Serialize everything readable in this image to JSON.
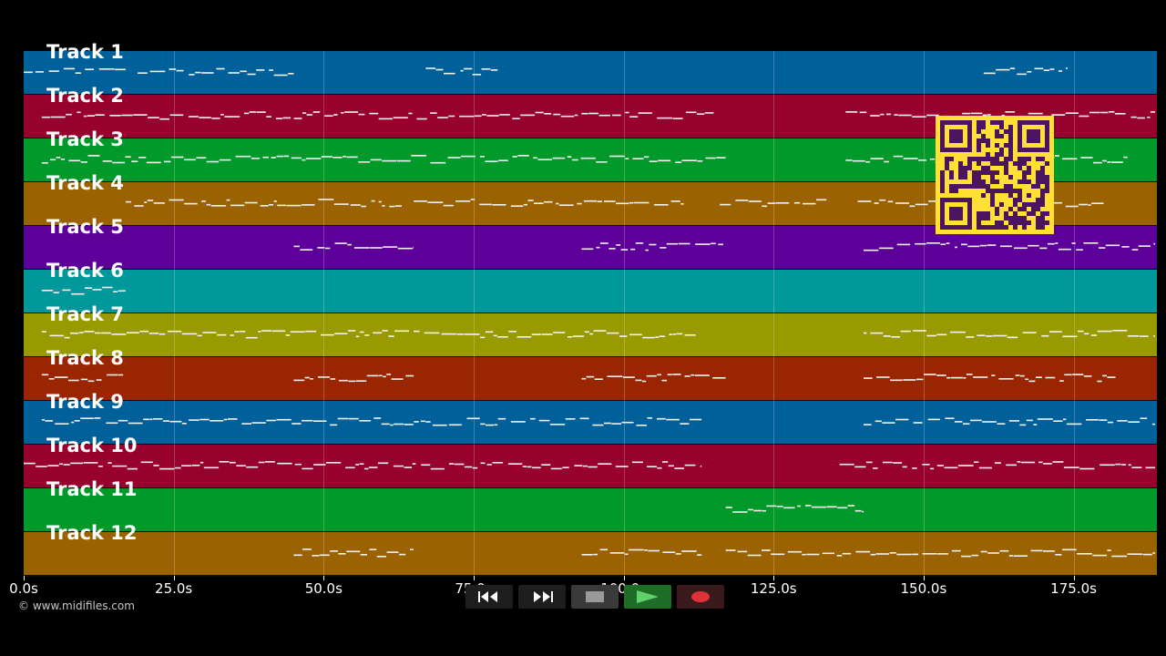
{
  "tracks": [
    {
      "label": "Track 1",
      "color": "#00609a"
    },
    {
      "label": "Track 2",
      "color": "#98002e"
    },
    {
      "label": "Track 3",
      "color": "#00992a"
    },
    {
      "label": "Track 4",
      "color": "#9a6200"
    },
    {
      "label": "Track 5",
      "color": "#5c0099"
    },
    {
      "label": "Track 6",
      "color": "#00989a"
    },
    {
      "label": "Track 7",
      "color": "#999900"
    },
    {
      "label": "Track 8",
      "color": "#992600"
    },
    {
      "label": "Track 9",
      "color": "#00609a"
    },
    {
      "label": "Track 10",
      "color": "#98002e"
    },
    {
      "label": "Track 11",
      "color": "#00992a"
    },
    {
      "label": "Track 12",
      "color": "#9a6200"
    }
  ],
  "time_axis": {
    "ticks": [
      "0.0s",
      "25.0s",
      "50.0s",
      "75.0s",
      "100.0s",
      "125.0s",
      "150.0s",
      "175.0s"
    ],
    "tick_values": [
      0,
      25,
      50,
      75,
      100,
      125,
      150,
      175
    ],
    "max_seconds": 189
  },
  "note_segments": [
    [
      [
        0,
        17
      ],
      [
        19,
        45
      ],
      [
        67,
        79
      ],
      [
        160,
        174
      ]
    ],
    [
      [
        3,
        115
      ],
      [
        137,
        189
      ]
    ],
    [
      [
        3,
        117
      ],
      [
        137,
        184
      ]
    ],
    [
      [
        17,
        63
      ],
      [
        65,
        110
      ],
      [
        116,
        134
      ],
      [
        139,
        180
      ]
    ],
    [
      [
        45,
        65
      ],
      [
        93,
        117
      ],
      [
        140,
        189
      ]
    ],
    [
      [
        3,
        17
      ]
    ],
    [
      [
        3,
        112
      ],
      [
        140,
        189
      ]
    ],
    [
      [
        3,
        17
      ],
      [
        45,
        65
      ],
      [
        93,
        117
      ],
      [
        140,
        182
      ]
    ],
    [
      [
        3,
        113
      ],
      [
        140,
        189
      ]
    ],
    [
      [
        0,
        113
      ],
      [
        136,
        189
      ]
    ],
    [
      [
        117,
        140
      ]
    ],
    [
      [
        45,
        65
      ],
      [
        93,
        113
      ],
      [
        117,
        189
      ]
    ]
  ],
  "copyright": "© www.midifiles.com",
  "transport": {
    "rewind_icon": "rewind-icon",
    "fast_forward_icon": "fast-forward-icon",
    "stop_icon": "stop-icon",
    "play_icon": "play-icon",
    "record_icon": "record-icon"
  },
  "qr_icon": "qr-code-icon"
}
